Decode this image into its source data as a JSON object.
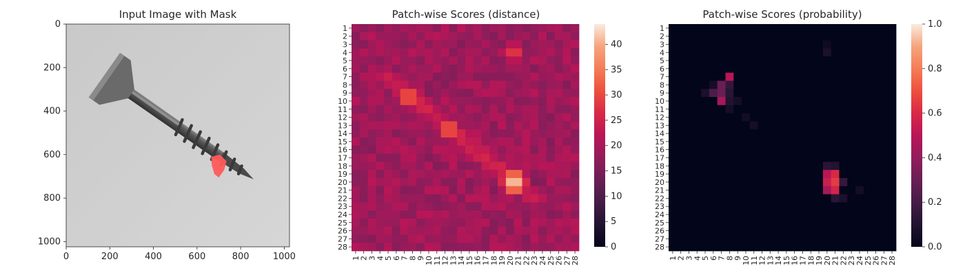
{
  "figure": {
    "panel1": {
      "title": "Input Image with Mask",
      "xticks": [
        "0",
        "200",
        "400",
        "600",
        "800",
        "1000"
      ],
      "yticks": [
        "0",
        "200",
        "400",
        "600",
        "800",
        "1000"
      ]
    },
    "panel2": {
      "title": "Patch-wise Scores (distance)",
      "colorbar_ticks": [
        "0",
        "5",
        "10",
        "15",
        "20",
        "25",
        "30",
        "35",
        "40"
      ]
    },
    "panel3": {
      "title": "Patch-wise Scores (probability)",
      "colorbar_ticks": [
        "0.0",
        "0.2",
        "0.4",
        "0.6",
        "0.8",
        "1.0"
      ]
    },
    "patch_labels": [
      "1",
      "2",
      "3",
      "4",
      "5",
      "6",
      "7",
      "8",
      "9",
      "10",
      "11",
      "12",
      "13",
      "14",
      "15",
      "16",
      "17",
      "18",
      "19",
      "20",
      "21",
      "22",
      "23",
      "24",
      "25",
      "26",
      "27",
      "28"
    ]
  },
  "chart_data": [
    {
      "type": "image",
      "title": "Input Image with Mask",
      "xlim": [
        0,
        1024
      ],
      "ylim": [
        1024,
        0
      ],
      "description_elements": {
        "object": "screw",
        "mask_color": "#ff5a5a"
      }
    },
    {
      "type": "heatmap",
      "title": "Patch-wise Scores (distance)",
      "grid": [
        28,
        28
      ],
      "colormap": "rocket",
      "vmin": 0,
      "vmax": 44,
      "base_value": 19,
      "hotspots": [
        {
          "center_row": 9.5,
          "center_col": 7.5,
          "peak_value": 33
        },
        {
          "center_row": 13.5,
          "center_col": 12.5,
          "peak_value": 33
        },
        {
          "center_row": 20,
          "center_col": 20.5,
          "peak_value": 43
        },
        {
          "center_row": 4,
          "center_col": 20.5,
          "peak_value": 29
        }
      ],
      "ridge": {
        "from": [
          7,
          5
        ],
        "to": [
          22,
          23
        ],
        "value": 25
      }
    },
    {
      "type": "heatmap",
      "title": "Patch-wise Scores (probability)",
      "grid": [
        28,
        28
      ],
      "colormap": "rocket",
      "vmin": 0.0,
      "vmax": 1.0,
      "base_value": 0.0,
      "cells": [
        {
          "row": 7,
          "col": 8,
          "value": 0.5
        },
        {
          "row": 8,
          "col": 7,
          "value": 0.3
        },
        {
          "row": 9,
          "col": 6,
          "value": 0.22
        },
        {
          "row": 9,
          "col": 7,
          "value": 0.3
        },
        {
          "row": 10,
          "col": 7,
          "value": 0.45
        },
        {
          "row": 8,
          "col": 8,
          "value": 0.15
        },
        {
          "row": 9,
          "col": 8,
          "value": 0.12
        },
        {
          "row": 10,
          "col": 8,
          "value": 0.1
        },
        {
          "row": 9,
          "col": 5,
          "value": 0.08
        },
        {
          "row": 10,
          "col": 9,
          "value": 0.06
        },
        {
          "row": 8,
          "col": 6,
          "value": 0.06
        },
        {
          "row": 11,
          "col": 8,
          "value": 0.06
        },
        {
          "row": 12,
          "col": 10,
          "value": 0.05
        },
        {
          "row": 13,
          "col": 11,
          "value": 0.06
        },
        {
          "row": 4,
          "col": 20,
          "value": 0.08
        },
        {
          "row": 3,
          "col": 20,
          "value": 0.04
        },
        {
          "row": 19,
          "col": 20,
          "value": 0.5
        },
        {
          "row": 19,
          "col": 21,
          "value": 0.6
        },
        {
          "row": 20,
          "col": 20,
          "value": 0.55
        },
        {
          "row": 20,
          "col": 21,
          "value": 0.65
        },
        {
          "row": 21,
          "col": 20,
          "value": 0.45
        },
        {
          "row": 21,
          "col": 21,
          "value": 0.58
        },
        {
          "row": 18,
          "col": 20,
          "value": 0.12
        },
        {
          "row": 18,
          "col": 21,
          "value": 0.1
        },
        {
          "row": 20,
          "col": 22,
          "value": 0.15
        },
        {
          "row": 22,
          "col": 21,
          "value": 0.12
        },
        {
          "row": 22,
          "col": 22,
          "value": 0.08
        },
        {
          "row": 21,
          "col": 24,
          "value": 0.06
        }
      ]
    }
  ]
}
